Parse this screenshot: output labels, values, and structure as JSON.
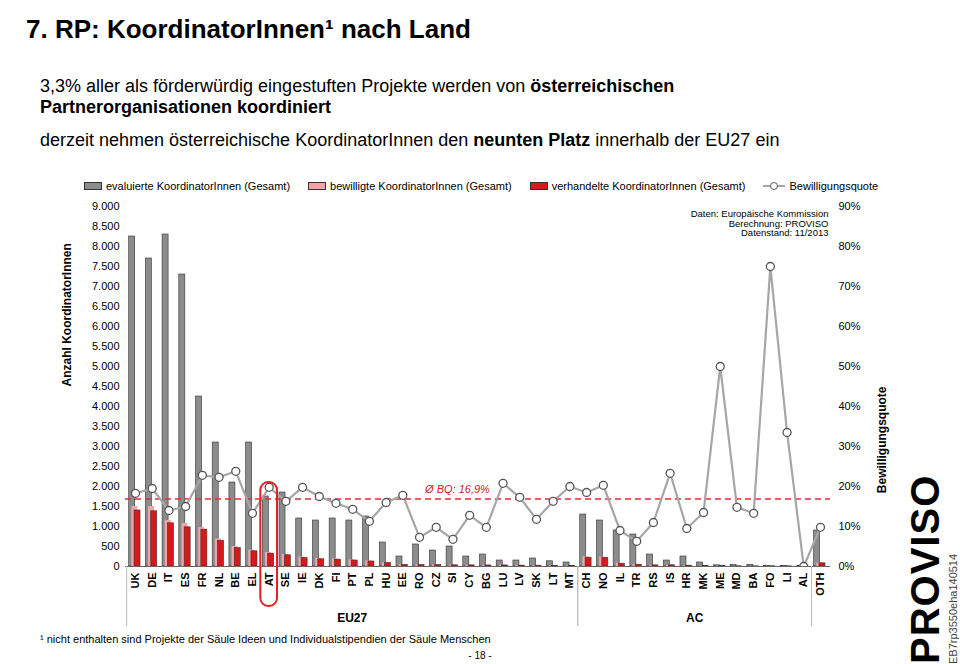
{
  "chart_data": {
    "type": "bar",
    "title": "7. RP: KoordinatorInnen¹ nach Land",
    "subtitle": [
      [
        "3,3% aller als förderwürdig eingestuften Projekte werden von ",
        "österreichischen Partnerorganisationen koordiniert"
      ],
      [
        "derzeit nehmen österreichische KoordinatorInnen den ",
        "neunten Platz",
        " innerhalb der EU27 ein"
      ]
    ],
    "categories": [
      "UK",
      "DE",
      "IT",
      "ES",
      "FR",
      "NL",
      "BE",
      "EL",
      "AT",
      "SE",
      "IE",
      "DK",
      "FI",
      "PT",
      "PL",
      "HU",
      "EE",
      "RO",
      "CZ",
      "SI",
      "CY",
      "BG",
      "LU",
      "LV",
      "SK",
      "LT",
      "MT",
      "CH",
      "NO",
      "IL",
      "TR",
      "RS",
      "IS",
      "HR",
      "MK",
      "ME",
      "MD",
      "BA",
      "FO",
      "LI",
      "AL",
      "OTH"
    ],
    "series": [
      {
        "name": "evaluierte KoordinatorInnen (Gesamt)",
        "type": "bar",
        "color": "#8c8c8c",
        "values": [
          8250,
          7700,
          8300,
          7300,
          4250,
          3100,
          2100,
          3100,
          1750,
          1850,
          1200,
          1150,
          1200,
          1150,
          1250,
          600,
          250,
          550,
          400,
          500,
          250,
          300,
          150,
          150,
          200,
          130,
          100,
          1300,
          1150,
          900,
          800,
          300,
          150,
          250,
          100,
          30,
          40,
          40,
          10,
          15,
          10,
          900
        ]
      },
      {
        "name": "bewilligte KoordinatorInnen (Gesamt)",
        "type": "bar",
        "color": "#f4a3a8",
        "values": [
          1500,
          1500,
          1150,
          1080,
          970,
          690,
          500,
          410,
          350,
          300,
          240,
          200,
          190,
          165,
          140,
          95,
          45,
          40,
          40,
          35,
          32,
          30,
          31,
          26,
          24,
          21,
          20,
          240,
          235,
          80,
          50,
          33,
          35,
          24,
          14,
          15,
          6,
          5,
          7,
          5,
          0,
          88
        ]
      },
      {
        "name": "verhandelte KoordinatorInnen (Gesamt)",
        "type": "bar",
        "color": "#d7191c",
        "values": [
          1400,
          1380,
          1080,
          980,
          920,
          640,
          460,
          380,
          320,
          280,
          210,
          180,
          170,
          150,
          125,
          85,
          40,
          35,
          35,
          30,
          28,
          26,
          27,
          22,
          20,
          18,
          17,
          220,
          215,
          70,
          45,
          28,
          30,
          20,
          12,
          13,
          5,
          4,
          6,
          4,
          0,
          80
        ]
      },
      {
        "name": "Bewilligungsquote",
        "type": "line",
        "axis": "y2",
        "color": "#a6a6a6",
        "marker": "circle",
        "line_style": "solid",
        "values": [
          18.3,
          19.5,
          14,
          15,
          22.8,
          22.3,
          23.8,
          13.3,
          19.8,
          16.3,
          19.8,
          17.5,
          15.8,
          14.3,
          11.3,
          16,
          17.8,
          7.3,
          9.8,
          6.8,
          12.8,
          9.8,
          20.8,
          17.3,
          11.8,
          16.3,
          20,
          18.5,
          20.3,
          9,
          6.3,
          11,
          23.3,
          9.5,
          13.5,
          50,
          14.8,
          13.3,
          75,
          33.5,
          0,
          9.8
        ]
      }
    ],
    "ylim": [
      0,
      9000
    ],
    "yticks": [
      0,
      500,
      {
        "value": 1000,
        "label": "1.000"
      },
      {
        "value": 1500,
        "label": "1.500"
      },
      {
        "value": 2000,
        "label": "2.000"
      },
      {
        "value": 2500,
        "label": "2.500"
      },
      {
        "value": 3000,
        "label": "3.000"
      },
      {
        "value": 3500,
        "label": "3.500"
      },
      {
        "value": 4000,
        "label": "4.000"
      },
      {
        "value": 4500,
        "label": "4.500"
      },
      {
        "value": 5000,
        "label": "5.000"
      },
      {
        "value": 5500,
        "label": "5.500"
      },
      {
        "value": 6000,
        "label": "6.000"
      },
      {
        "value": 6500,
        "label": "6.500"
      },
      {
        "value": 7000,
        "label": "7.000"
      },
      {
        "value": 7500,
        "label": "7.500"
      },
      {
        "value": 8000,
        "label": "8.000"
      },
      {
        "value": 8500,
        "label": "8.500"
      },
      {
        "value": 9000,
        "label": "9.000"
      }
    ],
    "y2lim": [
      0,
      90
    ],
    "y2ticks": [
      {
        "value": 0,
        "label": "0%"
      },
      {
        "value": 10,
        "label": "10%"
      },
      {
        "value": 20,
        "label": "20%"
      },
      {
        "value": 30,
        "label": "30%"
      },
      {
        "value": 40,
        "label": "40%"
      },
      {
        "value": 50,
        "label": "50%"
      },
      {
        "value": 60,
        "label": "60%"
      },
      {
        "value": 70,
        "label": "70%"
      },
      {
        "value": 80,
        "label": "80%"
      },
      {
        "value": 90,
        "label": "90%"
      }
    ],
    "y_label": "Anzahl KoordinatorInnen",
    "y2_label": "Bewilligungsquote",
    "grid": false,
    "legend": "top",
    "reference_line": {
      "value": 16.9,
      "label": "Ø BQ: 16,9%",
      "axis": "y2"
    },
    "highlight": "AT",
    "groups": [
      {
        "label": "EU27",
        "from": "UK",
        "to": "MT"
      },
      {
        "label": "AC",
        "from": "CH",
        "to": "AL"
      }
    ],
    "source": [
      "Daten: Europäische Kommission",
      "Berechnung: PROVISO",
      "Datenstand: 11/2013"
    ],
    "footnote": "¹ nicht enthalten sind Projekte der Säule Ideen und Individualstipendien der Säule Menschen",
    "page_number": "- 18 -",
    "logo": "PROVISO",
    "code": "EB7rp3550eha140514"
  }
}
